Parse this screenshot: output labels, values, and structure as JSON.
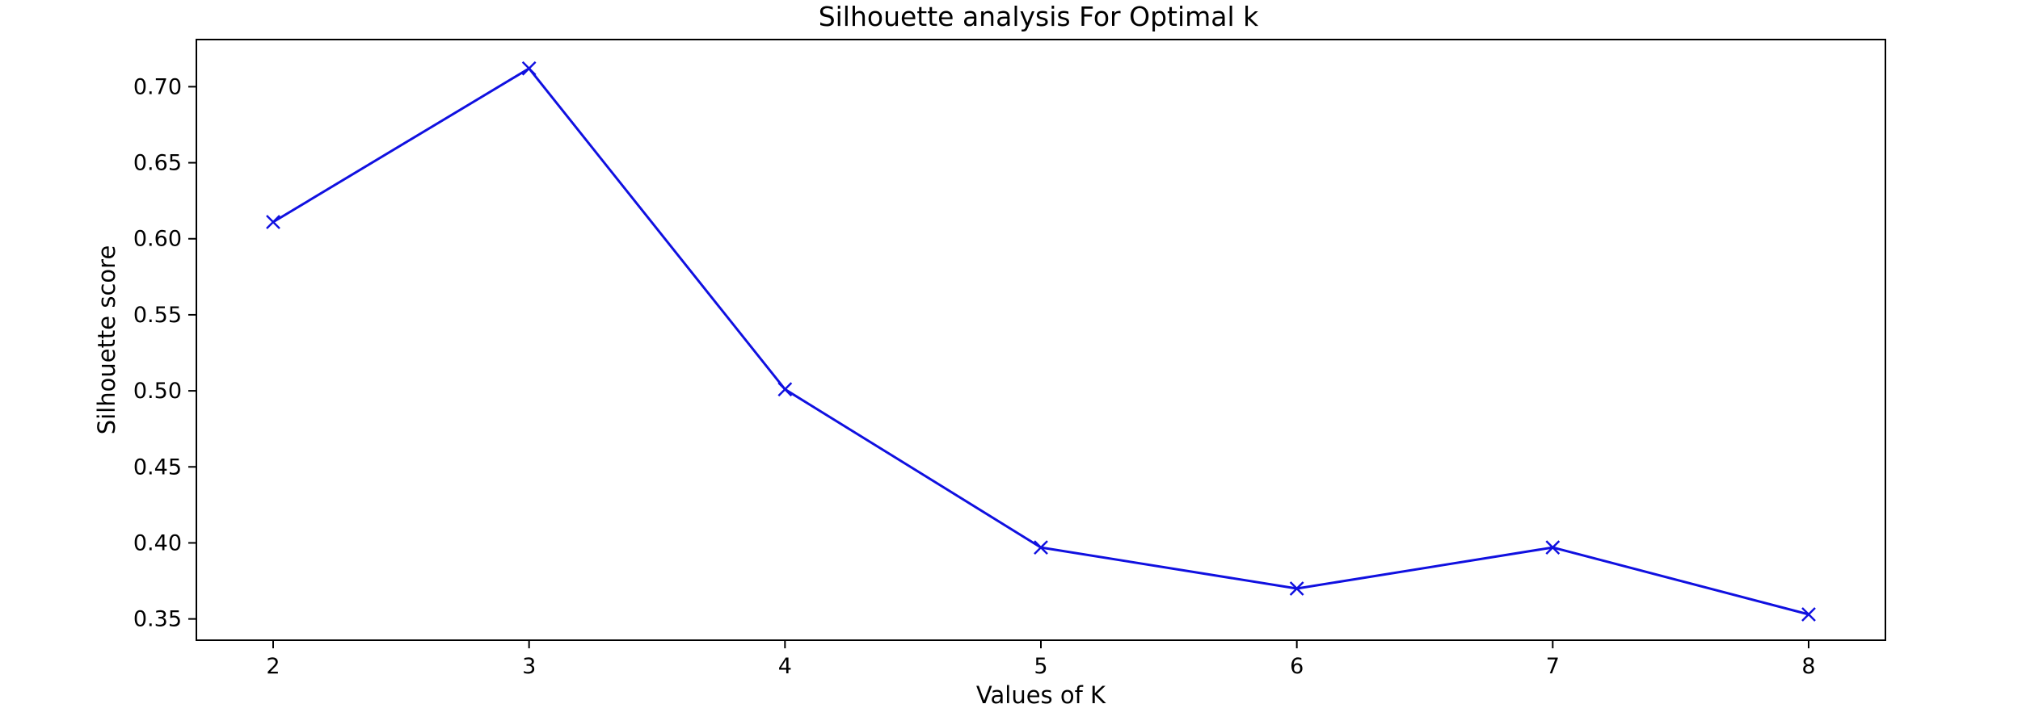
{
  "chart_data": {
    "type": "line",
    "title": "Silhouette analysis For Optimal k",
    "xlabel": "Values of K",
    "ylabel": "Silhouette score",
    "x": [
      2,
      3,
      4,
      5,
      6,
      7,
      8
    ],
    "series": [
      {
        "values": [
          0.611,
          0.712,
          0.501,
          0.397,
          0.37,
          0.397,
          0.353
        ],
        "marker": "x",
        "color": "#1010e0"
      }
    ],
    "xlim": [
      1.7,
      8.3
    ],
    "ylim": [
      0.336,
      0.731
    ],
    "xticks": [
      2,
      3,
      4,
      5,
      6,
      7,
      8
    ],
    "yticks": [
      0.35,
      0.4,
      0.45,
      0.5,
      0.55,
      0.6,
      0.65,
      0.7
    ],
    "ytick_labels": [
      "0.35",
      "0.40",
      "0.45",
      "0.50",
      "0.55",
      "0.60",
      "0.65",
      "0.70"
    ],
    "grid": false,
    "legend": false
  }
}
